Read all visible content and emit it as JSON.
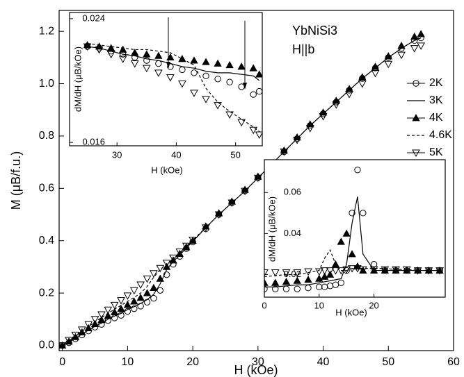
{
  "chart_data": [
    {
      "type": "line",
      "xlabel": "H (kOe)",
      "ylabel": "M (μB/f.u.)",
      "annotations": [
        "YbNiSi3",
        "H||b"
      ],
      "legend_loc": "upper right",
      "xlim": [
        -0.5,
        60
      ],
      "ylim": [
        -0.02,
        1.28
      ],
      "xticks": [
        0,
        10,
        20,
        30,
        40,
        50,
        60
      ],
      "yticks": [
        {
          "value": 0,
          "label": "0.0"
        },
        0.2,
        0.4,
        0.6,
        0.8,
        {
          "value": 1,
          "label": "1.0"
        },
        1.2
      ],
      "x": [
        0,
        1,
        2,
        3,
        4,
        5,
        6,
        7,
        8,
        9,
        10,
        11,
        12,
        13,
        14,
        15,
        16,
        17,
        18,
        19,
        20,
        22,
        24,
        26,
        28,
        30,
        32,
        34,
        36,
        38,
        40,
        42,
        44,
        46,
        48,
        50,
        52,
        54,
        55
      ],
      "series": [
        {
          "name": "2K",
          "color": "#000000",
          "marker": "circle-open",
          "values": [
            0,
            0.01,
            0.025,
            0.04,
            0.055,
            0.07,
            0.08,
            0.095,
            0.105,
            0.115,
            0.13,
            0.14,
            0.15,
            0.165,
            0.18,
            0.21,
            0.27,
            0.31,
            0.34,
            0.37,
            0.395,
            0.445,
            0.5,
            0.545,
            0.59,
            0.64,
            0.69,
            0.74,
            0.79,
            0.84,
            0.885,
            0.93,
            0.975,
            1.02,
            1.06,
            1.1,
            1.135,
            1.165,
            1.175
          ]
        },
        {
          "name": "3K",
          "color": "#000000",
          "marker": "line",
          "values": [
            0,
            0.012,
            0.027,
            0.043,
            0.058,
            0.073,
            0.085,
            0.1,
            0.112,
            0.122,
            0.137,
            0.148,
            0.16,
            0.175,
            0.195,
            0.235,
            0.29,
            0.32,
            0.345,
            0.372,
            0.397,
            0.45,
            0.5,
            0.545,
            0.59,
            0.64,
            0.69,
            0.74,
            0.79,
            0.84,
            0.885,
            0.93,
            0.975,
            1.02,
            1.06,
            1.1,
            1.135,
            1.165,
            1.175
          ]
        },
        {
          "name": "4K",
          "color": "#000000",
          "marker": "triangle-filled",
          "values": [
            0,
            0.015,
            0.032,
            0.05,
            0.066,
            0.082,
            0.097,
            0.113,
            0.127,
            0.14,
            0.155,
            0.168,
            0.182,
            0.2,
            0.22,
            0.255,
            0.3,
            0.325,
            0.35,
            0.375,
            0.4,
            0.455,
            0.505,
            0.55,
            0.595,
            0.645,
            0.695,
            0.745,
            0.795,
            0.845,
            0.89,
            0.935,
            0.98,
            1.025,
            1.065,
            1.105,
            1.145,
            1.18,
            1.19
          ]
        },
        {
          "name": "4.6K",
          "color": "#000000",
          "marker": "dashed",
          "values": [
            0,
            0.017,
            0.036,
            0.055,
            0.072,
            0.09,
            0.106,
            0.123,
            0.138,
            0.153,
            0.168,
            0.183,
            0.2,
            0.225,
            0.26,
            0.29,
            0.31,
            0.33,
            0.355,
            0.378,
            0.402,
            0.45,
            0.5,
            0.545,
            0.59,
            0.64,
            0.69,
            0.74,
            0.79,
            0.84,
            0.885,
            0.93,
            0.975,
            1.02,
            1.06,
            1.1,
            1.135,
            1.165,
            1.175
          ]
        },
        {
          "name": "5K",
          "color": "#000000",
          "marker": "triangle-down-open",
          "values": [
            0,
            0.02,
            0.04,
            0.06,
            0.08,
            0.1,
            0.118,
            0.136,
            0.154,
            0.172,
            0.19,
            0.21,
            0.232,
            0.255,
            0.275,
            0.295,
            0.315,
            0.335,
            0.358,
            0.38,
            0.403,
            0.45,
            0.5,
            0.545,
            0.59,
            0.64,
            0.69,
            0.74,
            0.785,
            0.83,
            0.875,
            0.92,
            0.96,
            1.0,
            1.04,
            1.075,
            1.11,
            1.135,
            1.145
          ]
        }
      ]
    },
    {
      "type": "line",
      "xlabel": "H (kOe)",
      "ylabel": "dM/dH (μB/kOe)",
      "xlim": [
        22,
        54.5
      ],
      "ylim": [
        0.01578,
        0.0244
      ],
      "xticks": [
        30,
        40,
        50
      ],
      "yticks": [
        0.016,
        0.024
      ],
      "x": [
        25,
        27,
        29,
        31,
        33,
        35,
        37,
        39,
        41,
        43,
        45,
        47,
        49,
        51,
        53,
        54
      ],
      "series": [
        {
          "color": "#000000",
          "marker": "circle-open",
          "values": [
            0.0222,
            0.0221,
            0.0219,
            0.0217,
            0.0215,
            0.0213,
            0.0211,
            0.0209,
            0.0207,
            0.0205,
            0.0203,
            0.0201,
            0.0199,
            0.0196,
            0.0191,
            0.0193
          ]
        },
        {
          "color": "#000000",
          "marker": "line",
          "values": [
            0.0222,
            0.0221,
            0.0219,
            0.0217,
            0.0216,
            0.0214,
            0.0213,
            0.0211,
            0.0209,
            0.0208,
            0.0206,
            0.0205,
            0.0205,
            0.0204,
            0.0203,
            0.02
          ]
        },
        {
          "color": "#000000",
          "marker": "triangle-filled",
          "values": [
            0.0223,
            0.0222,
            0.0221,
            0.022,
            0.0218,
            0.0217,
            0.0216,
            0.0215,
            0.0214,
            0.0213,
            0.0212,
            0.0211,
            0.021,
            0.0209,
            0.0208,
            0.0204
          ]
        },
        {
          "color": "#000000",
          "marker": "dashed",
          "values": [
            0.0224,
            0.0223,
            0.0222,
            0.0221,
            0.022,
            0.022,
            0.0219,
            0.0218,
            0.0214,
            0.021,
            0.0195,
            0.0186,
            0.018,
            0.0175,
            0.017,
            0.0167
          ]
        },
        {
          "color": "#000000",
          "marker": "triangle-down-open",
          "values": [
            0.0222,
            0.022,
            0.0217,
            0.0214,
            0.0211,
            0.0208,
            0.0205,
            0.0202,
            0.0198,
            0.0192,
            0.0188,
            0.0184,
            0.0178,
            0.0173,
            0.0168,
            0.0165
          ]
        }
      ]
    },
    {
      "type": "line",
      "xlabel": "H (kOe)",
      "ylabel": "dM/dH (μB/kOe)",
      "xlim": [
        0,
        33
      ],
      "ylim": [
        0.009,
        0.076
      ],
      "xticks": [
        0,
        10,
        20
      ],
      "yticks": [
        0.02,
        0.04,
        0.06
      ],
      "x": [
        0,
        2,
        4,
        6,
        8,
        10,
        11,
        12,
        13,
        14,
        15,
        16,
        17,
        18,
        20,
        22,
        24,
        26,
        28,
        30,
        32
      ],
      "series": [
        {
          "color": "#000000",
          "marker": "circle-open",
          "values": [
            0.013,
            0.013,
            0.013,
            0.013,
            0.0135,
            0.014,
            0.014,
            0.0145,
            0.015,
            0.016,
            0.022,
            0.05,
            0.071,
            0.05,
            0.025,
            0.022,
            0.022,
            0.022,
            0.022,
            0.022,
            0.022
          ]
        },
        {
          "color": "#000000",
          "marker": "line",
          "values": [
            0.014,
            0.014,
            0.0145,
            0.015,
            0.015,
            0.016,
            0.0165,
            0.017,
            0.0175,
            0.018,
            0.025,
            0.045,
            0.058,
            0.03,
            0.022,
            0.022,
            0.022,
            0.022,
            0.022,
            0.022,
            0.022
          ]
        },
        {
          "color": "#000000",
          "marker": "triangle-filled",
          "values": [
            0.016,
            0.016,
            0.0165,
            0.017,
            0.0175,
            0.018,
            0.019,
            0.02,
            0.025,
            0.036,
            0.04,
            0.03,
            0.024,
            0.022,
            0.022,
            0.022,
            0.022,
            0.022,
            0.022,
            0.022,
            0.022
          ]
        },
        {
          "color": "#000000",
          "marker": "dashed",
          "values": [
            0.019,
            0.0195,
            0.02,
            0.02,
            0.021,
            0.022,
            0.028,
            0.032,
            0.025,
            0.022,
            0.022,
            0.023,
            0.023,
            0.023,
            0.023,
            0.023,
            0.0225,
            0.0225,
            0.022,
            0.022,
            0.022
          ]
        },
        {
          "color": "#000000",
          "marker": "triangle-down-open",
          "values": [
            0.021,
            0.021,
            0.021,
            0.021,
            0.0215,
            0.0215,
            0.022,
            0.022,
            0.022,
            0.022,
            0.0225,
            0.023,
            0.023,
            0.0225,
            0.0225,
            0.0225,
            0.0225,
            0.0225,
            0.022,
            0.022,
            0.022
          ]
        }
      ]
    }
  ]
}
